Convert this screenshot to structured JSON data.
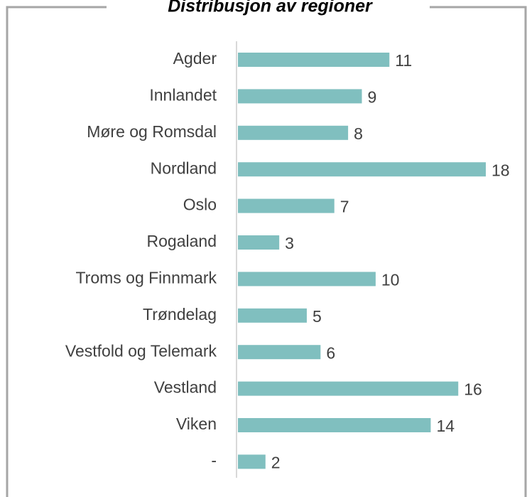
{
  "chart_data": {
    "type": "bar",
    "orientation": "horizontal",
    "title": "Distribusjon av regioner",
    "categories": [
      "Agder",
      "Innlandet",
      "Møre og Romsdal",
      "Nordland",
      "Oslo",
      "Rogaland",
      "Troms og Finnmark",
      "Trøndelag",
      "Vestfold og Telemark",
      "Vestland",
      "Viken",
      "-"
    ],
    "values": [
      11,
      9,
      8,
      18,
      7,
      3,
      10,
      5,
      6,
      16,
      14,
      2
    ],
    "color": "#80bfbf",
    "xlim": [
      0,
      18
    ]
  }
}
